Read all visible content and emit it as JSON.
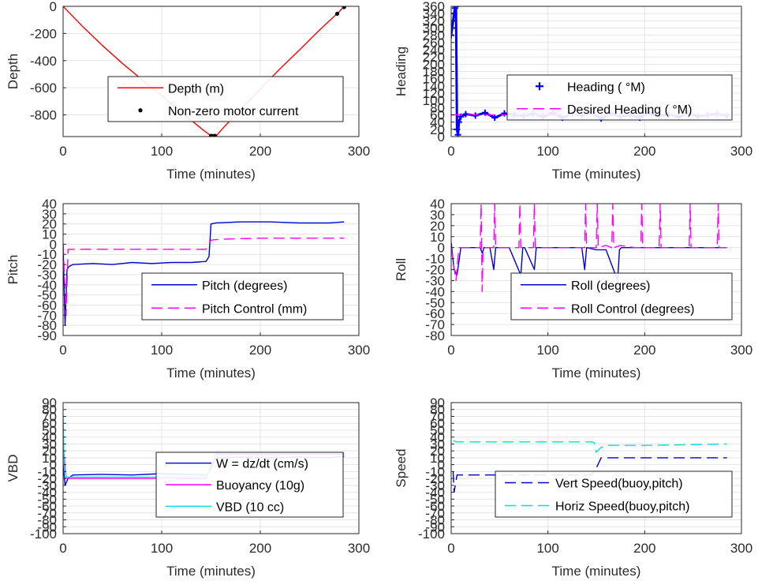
{
  "chart_data": [
    {
      "id": "depth",
      "type": "line",
      "xlabel": "Time (minutes)",
      "ylabel": "Depth",
      "xlim": [
        0,
        300
      ],
      "ylim": [
        -960,
        0
      ],
      "xticks": [
        0,
        100,
        200,
        300
      ],
      "yticks": [
        -800,
        -600,
        -400,
        -200,
        0
      ],
      "grid": true,
      "legend_position": "center-right",
      "series": [
        {
          "name": "Depth (m)",
          "color": "#ff0000",
          "style": "solid",
          "x": [
            0,
            20,
            40,
            60,
            80,
            100,
            120,
            140,
            150,
            155,
            160,
            180,
            200,
            220,
            240,
            260,
            280,
            285
          ],
          "y": [
            0,
            -150,
            -290,
            -420,
            -540,
            -660,
            -780,
            -900,
            -955,
            -958,
            -915,
            -760,
            -610,
            -460,
            -320,
            -175,
            -40,
            0
          ]
        },
        {
          "name": "Non-zero motor current",
          "color": "#000000",
          "style": "dots",
          "x": [
            150,
            151,
            152,
            153,
            154,
            278,
            285
          ],
          "y": [
            -955,
            -956,
            -957,
            -956,
            -955,
            -55,
            -5
          ]
        }
      ]
    },
    {
      "id": "heading",
      "type": "line",
      "xlabel": "Time (minutes)",
      "ylabel": "Heading",
      "xlim": [
        0,
        300
      ],
      "ylim": [
        0,
        360
      ],
      "xticks": [
        0,
        100,
        200,
        300
      ],
      "yticks": [
        0,
        20,
        40,
        60,
        80,
        100,
        120,
        140,
        160,
        180,
        200,
        220,
        240,
        260,
        280,
        300,
        320,
        340,
        360
      ],
      "grid": true,
      "legend_position": "center-right",
      "series": [
        {
          "name": "Heading ( °M)",
          "color": "#0000ff",
          "style": "plus",
          "x": [
            0,
            1,
            2,
            3,
            4,
            5,
            6,
            7,
            8,
            10,
            15,
            25,
            35,
            45,
            55,
            65,
            75,
            85,
            95,
            105,
            115,
            125,
            135,
            145,
            155,
            165,
            175,
            185,
            195,
            205,
            215,
            225,
            235,
            245,
            255,
            265,
            275,
            285
          ],
          "y": [
            280,
            300,
            320,
            340,
            355,
            360,
            20,
            5,
            40,
            55,
            62,
            58,
            66,
            52,
            64,
            60,
            57,
            63,
            55,
            65,
            52,
            62,
            58,
            66,
            50,
            64,
            55,
            60,
            52,
            66,
            58,
            62,
            54,
            64,
            56,
            60,
            62,
            58
          ]
        },
        {
          "name": "Desired Heading ( °M)",
          "color": "#ff00ff",
          "style": "dashed",
          "x": [
            0,
            285
          ],
          "y": [
            60,
            60
          ]
        }
      ]
    },
    {
      "id": "pitch",
      "type": "line",
      "xlabel": "Time (minutes)",
      "ylabel": "Pitch",
      "xlim": [
        0,
        300
      ],
      "ylim": [
        -90,
        40
      ],
      "xticks": [
        0,
        100,
        200,
        300
      ],
      "yticks": [
        -90,
        -80,
        -70,
        -60,
        -50,
        -40,
        -30,
        -20,
        -10,
        0,
        10,
        20,
        30,
        40
      ],
      "grid": true,
      "legend_position": "lower-right",
      "series": [
        {
          "name": "Pitch (degrees)",
          "color": "#0000cc",
          "style": "solid",
          "x": [
            0,
            2,
            4,
            6,
            10,
            30,
            50,
            70,
            90,
            110,
            130,
            145,
            148,
            150,
            155,
            180,
            210,
            240,
            270,
            285
          ],
          "y": [
            0,
            -80,
            -25,
            -22,
            -20,
            -19,
            -20,
            -18,
            -19,
            -18,
            -18,
            -17,
            -12,
            20,
            21,
            22,
            22,
            21,
            21,
            22
          ]
        },
        {
          "name": "Pitch Control (mm)",
          "color": "#ff00ff",
          "style": "dashed",
          "x": [
            0,
            3,
            5,
            10,
            50,
            100,
            145,
            147,
            150,
            160,
            200,
            250,
            285
          ],
          "y": [
            0,
            -70,
            -5,
            -5,
            -5,
            -5,
            -5,
            -2,
            4,
            5,
            6,
            6,
            6
          ]
        }
      ]
    },
    {
      "id": "roll",
      "type": "line",
      "xlabel": "Time (minutes)",
      "ylabel": "Roll",
      "xlim": [
        0,
        300
      ],
      "ylim": [
        -80,
        40
      ],
      "xticks": [
        0,
        100,
        200,
        300
      ],
      "yticks": [
        -80,
        -70,
        -60,
        -50,
        -40,
        -30,
        -20,
        -10,
        0,
        10,
        20,
        30,
        40
      ],
      "grid": true,
      "legend_position": "lower-right",
      "series": [
        {
          "name": "Roll (degrees)",
          "color": "#0000cc",
          "style": "solid",
          "x": [
            0,
            3,
            6,
            10,
            20,
            30,
            32,
            34,
            40,
            44,
            46,
            60,
            72,
            74,
            76,
            86,
            88,
            90,
            120,
            135,
            138,
            140,
            150,
            160,
            172,
            174,
            176,
            200,
            230,
            260,
            280,
            285
          ],
          "y": [
            5,
            -20,
            -25,
            0,
            0,
            0,
            -5,
            0,
            0,
            -20,
            0,
            0,
            -25,
            0,
            0,
            -20,
            0,
            0,
            0,
            0,
            -20,
            0,
            -2,
            -2,
            -30,
            -2,
            0,
            0,
            0,
            0,
            0,
            0
          ]
        },
        {
          "name": "Roll Control (degrees)",
          "color": "#ff00ff",
          "style": "dashed",
          "x": [
            0,
            5,
            8,
            20,
            30,
            31,
            32,
            33,
            44,
            45,
            46,
            60,
            70,
            71,
            72,
            85,
            86,
            87,
            100,
            138,
            139,
            140,
            145,
            150,
            151,
            152,
            160,
            166,
            167,
            168,
            175,
            190,
            196,
            197,
            198,
            215,
            216,
            217,
            240,
            246,
            247,
            248,
            270,
            275,
            276,
            277,
            285
          ],
          "y": [
            0,
            -30,
            0,
            0,
            0,
            40,
            -40,
            0,
            0,
            40,
            0,
            0,
            0,
            40,
            0,
            0,
            40,
            0,
            0,
            0,
            40,
            0,
            0,
            0,
            40,
            0,
            2,
            0,
            40,
            0,
            2,
            0,
            0,
            40,
            0,
            0,
            40,
            0,
            0,
            0,
            40,
            0,
            0,
            0,
            40,
            0,
            0
          ]
        }
      ]
    },
    {
      "id": "vbd",
      "type": "line",
      "xlabel": "Time (minutes)",
      "ylabel": "VBD",
      "xlim": [
        0,
        300
      ],
      "ylim": [
        -100,
        90
      ],
      "xticks": [
        0,
        100,
        200,
        300
      ],
      "yticks": [
        -100,
        -90,
        -80,
        -70,
        -60,
        -50,
        -40,
        -30,
        -20,
        -10,
        0,
        10,
        20,
        30,
        40,
        50,
        60,
        70,
        80,
        90
      ],
      "grid": true,
      "legend_position": "lower-right",
      "series": [
        {
          "name": "W = dz/dt (cm/s)",
          "color": "#0000cc",
          "style": "solid",
          "x": [
            0,
            2,
            5,
            10,
            40,
            70,
            100,
            130,
            145,
            150,
            155,
            180,
            210,
            240,
            270,
            285
          ],
          "y": [
            0,
            -30,
            -20,
            -15,
            -14,
            -15,
            -13,
            -14,
            -15,
            -5,
            10,
            11,
            10,
            11,
            10,
            12
          ]
        },
        {
          "name": "Buoyancy (10g)",
          "color": "#ff00ff",
          "style": "solid",
          "x": [
            0,
            3,
            10,
            145,
            150,
            155,
            200,
            285
          ],
          "y": [
            30,
            -20,
            -20,
            -20,
            0,
            15,
            15,
            15
          ]
        },
        {
          "name": "VBD (10 cc)",
          "color": "#00dddd",
          "style": "solid",
          "x": [
            0,
            1,
            3,
            10,
            145,
            150,
            155,
            200,
            285
          ],
          "y": [
            70,
            0,
            -18,
            -18,
            -18,
            0,
            17,
            17,
            17
          ]
        }
      ]
    },
    {
      "id": "speed",
      "type": "line",
      "xlabel": "Time (minutes)",
      "ylabel": "Speed",
      "xlim": [
        0,
        300
      ],
      "ylim": [
        -100,
        90
      ],
      "xticks": [
        0,
        100,
        200,
        300
      ],
      "yticks": [
        -100,
        -90,
        -80,
        -70,
        -60,
        -50,
        -40,
        -30,
        -20,
        -10,
        0,
        10,
        20,
        30,
        40,
        50,
        60,
        70,
        80,
        90
      ],
      "grid": true,
      "legend_position": "lower-right",
      "series": [
        {
          "name": "Vert Speed(buoy,pitch)",
          "color": "#0000cc",
          "style": "dashed",
          "x": [
            2,
            3,
            6,
            40,
            80,
            120,
            145,
            150,
            155,
            200,
            250,
            285
          ],
          "y": [
            -10,
            -40,
            -15,
            -15,
            -15,
            -15,
            -15,
            -5,
            10,
            10,
            10,
            10
          ]
        },
        {
          "name": "Horiz Speed(buoy,pitch)",
          "color": "#00dddd",
          "style": "dashed",
          "x": [
            2,
            5,
            50,
            100,
            145,
            148,
            150,
            155,
            160,
            200,
            250,
            285
          ],
          "y": [
            35,
            33,
            33,
            33,
            33,
            32,
            18,
            25,
            28,
            28,
            29,
            30
          ]
        }
      ]
    }
  ]
}
